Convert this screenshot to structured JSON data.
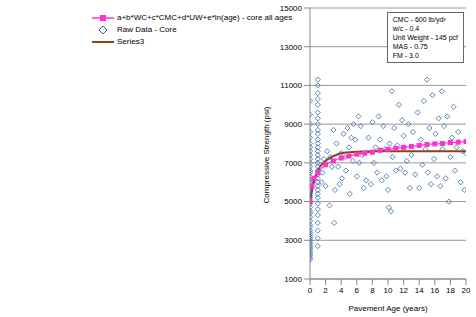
{
  "chart_data": {
    "type": "scatter",
    "x_label": "Pavement Age (years)",
    "y_label": "Compressive Strength (psi)",
    "xlim": [
      0,
      20
    ],
    "xticks": [
      0,
      2,
      4,
      6,
      8,
      10,
      12,
      14,
      16,
      18,
      20
    ],
    "ylim": [
      1000,
      15000
    ],
    "yticks": [
      1000,
      3000,
      5000,
      7000,
      9000,
      11000,
      13000,
      15000
    ],
    "grid": true,
    "legend": "upper left",
    "annotations": [
      "CMC - 600 lb/yd³",
      "w/c - 0.4",
      "Unit Weight - 145 pcf",
      "MAS - 0.75",
      "FM - 3.0"
    ],
    "series": [
      {
        "name": "a+b*WC+c*CMC+d*UW+e*ln(age) - core all ages",
        "type": "line",
        "color": "#ff33cc",
        "marker": "square",
        "x": [
          0,
          0.25,
          0.5,
          1,
          2,
          3,
          4,
          5,
          6,
          7,
          8,
          9,
          10,
          11,
          12,
          13,
          14,
          15,
          16,
          17,
          18,
          19,
          20
        ],
        "values": [
          5000,
          5800,
          6200,
          6500,
          6900,
          7100,
          7250,
          7350,
          7450,
          7500,
          7550,
          7650,
          7700,
          7750,
          7800,
          7850,
          7900,
          7950,
          7980,
          8000,
          8050,
          8070,
          8100
        ]
      },
      {
        "name": "Raw Data - Core",
        "type": "scatter",
        "color": "#3366aa",
        "marker": "diamond",
        "points": [
          [
            0,
            2000
          ],
          [
            0,
            2100
          ],
          [
            0,
            2200
          ],
          [
            0,
            2300
          ],
          [
            0,
            2400
          ],
          [
            0,
            2500
          ],
          [
            0,
            2600
          ],
          [
            0,
            2700
          ],
          [
            0,
            2800
          ],
          [
            0,
            2900
          ],
          [
            0,
            3000
          ],
          [
            0,
            3100
          ],
          [
            0,
            3200
          ],
          [
            0,
            3300
          ],
          [
            0,
            3400
          ],
          [
            0,
            3500
          ],
          [
            0,
            3700
          ],
          [
            0,
            3800
          ],
          [
            0,
            4000
          ],
          [
            0,
            4200
          ],
          [
            0,
            4400
          ],
          [
            0,
            4500
          ],
          [
            0,
            4700
          ],
          [
            0,
            4900
          ],
          [
            0,
            5000
          ],
          [
            0,
            5200
          ],
          [
            0,
            5300
          ],
          [
            0,
            5500
          ],
          [
            0,
            5600
          ],
          [
            0,
            5800
          ],
          [
            0,
            6000
          ],
          [
            0,
            6100
          ],
          [
            0,
            6300
          ],
          [
            0,
            6500
          ],
          [
            0,
            6600
          ],
          [
            0,
            6800
          ],
          [
            0,
            7000
          ],
          [
            0,
            7200
          ],
          [
            0,
            7400
          ],
          [
            0,
            7600
          ],
          [
            0,
            7800
          ],
          [
            0,
            8000
          ],
          [
            0,
            8300
          ],
          [
            0,
            8600
          ],
          [
            0,
            9000
          ],
          [
            0,
            9500
          ],
          [
            0,
            10200
          ],
          [
            1,
            2700
          ],
          [
            1,
            3100
          ],
          [
            1,
            3500
          ],
          [
            1,
            3900
          ],
          [
            1,
            4300
          ],
          [
            1,
            4600
          ],
          [
            1,
            4900
          ],
          [
            1,
            5200
          ],
          [
            1,
            5400
          ],
          [
            1,
            5600
          ],
          [
            1,
            5800
          ],
          [
            1,
            6000
          ],
          [
            1,
            6200
          ],
          [
            1,
            6400
          ],
          [
            1,
            6600
          ],
          [
            1,
            6800
          ],
          [
            1,
            7000
          ],
          [
            1,
            7200
          ],
          [
            1,
            7400
          ],
          [
            1,
            7600
          ],
          [
            1,
            7800
          ],
          [
            1,
            8000
          ],
          [
            1,
            8200
          ],
          [
            1,
            8500
          ],
          [
            1,
            8700
          ],
          [
            1,
            9000
          ],
          [
            1,
            9300
          ],
          [
            1,
            9600
          ],
          [
            1,
            10000
          ],
          [
            1,
            10300
          ],
          [
            1,
            10600
          ],
          [
            1,
            11000
          ],
          [
            1,
            11300
          ],
          [
            1.5,
            6000
          ],
          [
            1.6,
            6500
          ],
          [
            1.8,
            7200
          ],
          [
            2,
            5800
          ],
          [
            2.2,
            7600
          ],
          [
            2.5,
            4800
          ],
          [
            2.6,
            7300
          ],
          [
            2.8,
            6800
          ],
          [
            3,
            8700
          ],
          [
            3.1,
            3900
          ],
          [
            3.2,
            5600
          ],
          [
            3.4,
            8000
          ],
          [
            3.6,
            6800
          ],
          [
            3.8,
            5900
          ],
          [
            4,
            7500
          ],
          [
            4.1,
            6200
          ],
          [
            4.3,
            8500
          ],
          [
            4.5,
            7300
          ],
          [
            4.6,
            6600
          ],
          [
            4.8,
            8800
          ],
          [
            5,
            7800
          ],
          [
            5.1,
            5400
          ],
          [
            5.3,
            8300
          ],
          [
            5.5,
            7100
          ],
          [
            5.6,
            9000
          ],
          [
            5.8,
            8200
          ],
          [
            6,
            6300
          ],
          [
            6.2,
            9400
          ],
          [
            6.3,
            7000
          ],
          [
            6.5,
            8900
          ],
          [
            6.7,
            7400
          ],
          [
            6.9,
            5700
          ],
          [
            7.2,
            6100
          ],
          [
            7.5,
            8300
          ],
          [
            7.8,
            5900
          ],
          [
            8,
            9100
          ],
          [
            8.2,
            7000
          ],
          [
            8.4,
            7800
          ],
          [
            8.6,
            6500
          ],
          [
            8.8,
            9400
          ],
          [
            9,
            8200
          ],
          [
            9.2,
            6100
          ],
          [
            9.4,
            8900
          ],
          [
            9.6,
            7700
          ],
          [
            9.8,
            6300
          ],
          [
            10,
            5600
          ],
          [
            10.1,
            4700
          ],
          [
            10.2,
            8000
          ],
          [
            10.4,
            4500
          ],
          [
            10.5,
            10700
          ],
          [
            10.6,
            7300
          ],
          [
            10.8,
            8800
          ],
          [
            11,
            6600
          ],
          [
            11.2,
            7900
          ],
          [
            11.4,
            10000
          ],
          [
            11.6,
            6700
          ],
          [
            11.8,
            9200
          ],
          [
            12,
            8400
          ],
          [
            12.2,
            6500
          ],
          [
            12.4,
            7100
          ],
          [
            12.6,
            9000
          ],
          [
            12.8,
            5700
          ],
          [
            13,
            7400
          ],
          [
            13.2,
            8600
          ],
          [
            13.5,
            6400
          ],
          [
            13.8,
            9600
          ],
          [
            14,
            5700
          ],
          [
            14.2,
            8200
          ],
          [
            14.4,
            6900
          ],
          [
            14.6,
            10200
          ],
          [
            14.8,
            7700
          ],
          [
            15,
            11300
          ],
          [
            15.1,
            6500
          ],
          [
            15.3,
            8800
          ],
          [
            15.5,
            5900
          ],
          [
            15.7,
            10500
          ],
          [
            15.9,
            7200
          ],
          [
            16.1,
            8500
          ],
          [
            16.3,
            6300
          ],
          [
            16.5,
            9300
          ],
          [
            16.7,
            5800
          ],
          [
            16.9,
            10700
          ],
          [
            17,
            7700
          ],
          [
            17.2,
            8900
          ],
          [
            17.4,
            6200
          ],
          [
            17.6,
            9400
          ],
          [
            17.8,
            5000
          ],
          [
            18,
            7300
          ],
          [
            18.2,
            8300
          ],
          [
            18.4,
            9900
          ],
          [
            18.6,
            6600
          ],
          [
            18.8,
            7800
          ],
          [
            19,
            8600
          ],
          [
            19.3,
            6000
          ],
          [
            19.6,
            7600
          ],
          [
            19.8,
            5600
          ],
          [
            20,
            7500
          ]
        ]
      },
      {
        "name": "Series3",
        "type": "line",
        "color": "#8b4513",
        "marker": "none",
        "x": [
          0,
          0.5,
          1,
          2,
          3,
          4,
          5,
          6,
          8,
          20
        ],
        "values": [
          5000,
          6000,
          6600,
          7100,
          7350,
          7500,
          7550,
          7580,
          7600,
          7600
        ]
      }
    ]
  }
}
